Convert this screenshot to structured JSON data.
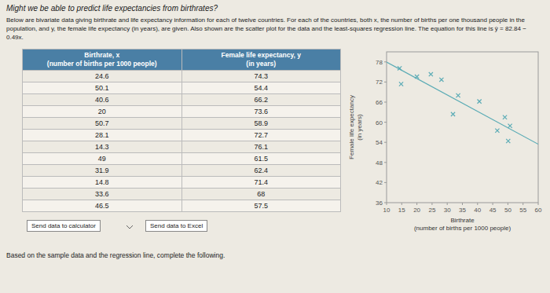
{
  "chart_data": {
    "type": "scatter",
    "xlabel": "Birthrate\n(number of births per 1000 people)",
    "ylabel": "Female life expectancy\n(in years)",
    "series": [
      {
        "type": "scatter",
        "marker": "x",
        "color": "#5aabb5",
        "x": [
          24.6,
          50.1,
          40.6,
          20.0,
          50.7,
          28.1,
          14.3,
          49.0,
          31.9,
          14.8,
          33.6,
          46.5
        ],
        "values": [
          74.3,
          54.4,
          66.2,
          73.6,
          58.9,
          72.7,
          76.1,
          61.5,
          62.4,
          71.4,
          68.0,
          57.5
        ]
      },
      {
        "type": "line",
        "color": "#5aabb5",
        "x": [
          10,
          60
        ],
        "values": [
          77.94,
          53.44
        ]
      }
    ],
    "xlim": [
      10,
      60
    ],
    "ylim": [
      36,
      81
    ],
    "xticks": [
      10,
      15,
      20,
      25,
      30,
      35,
      40,
      45,
      50,
      55,
      60
    ],
    "yticks": [
      36,
      42,
      48,
      54,
      60,
      66,
      72,
      78
    ],
    "grid": false
  },
  "page": {
    "title": "Might we be able to predict life expectancies from birthrates?",
    "body": [
      "Below are bivariate data giving birthrate and life expectancy information for each of twelve countries. For each of the countries, both x, the number of births per",
      "one thousand people in the population, and y, the female life expectancy (in years), are given. Also shown are the scatter plot for the data and the least-squares",
      "regression line. The equation for this line is ŷ = 82.84 − 0.49x."
    ],
    "table_headers": [
      [
        "Birthrate, x",
        "(number of births per 1000 people)"
      ],
      [
        "Female life expectancy, y",
        "(in years)"
      ]
    ],
    "buttons": [
      "Send data to calculator",
      "Send data to Excel"
    ],
    "footer": "Based on the sample data and the regression line, complete the following."
  }
}
